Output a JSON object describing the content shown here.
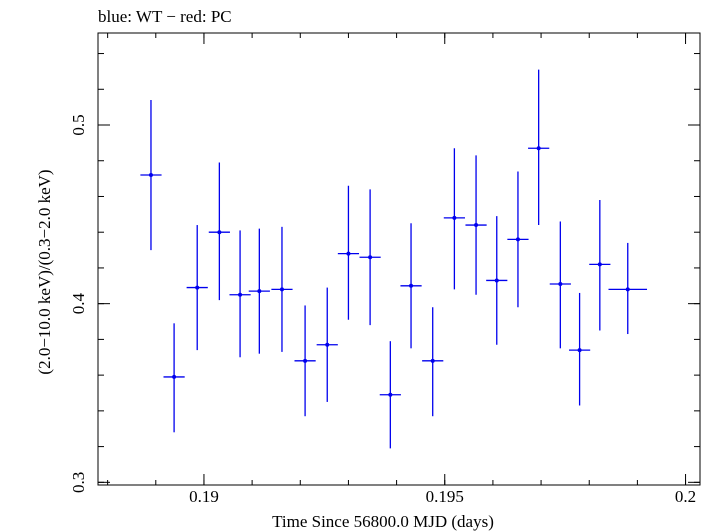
{
  "chart_data": {
    "type": "scatter",
    "title": "blue: WT − red: PC",
    "xlabel": "Time Since 56800.0 MJD (days)",
    "ylabel": "(2.0−10.0 keV)/(0.3−2.0 keV)",
    "xlim": [
      0.1878,
      0.2003
    ],
    "ylim": [
      0.2985,
      0.5515
    ],
    "log_y": false,
    "grid": false,
    "x_ticks": [
      {
        "value": 0.19,
        "label": "0.19"
      },
      {
        "value": 0.195,
        "label": "0.195"
      },
      {
        "value": 0.2,
        "label": "0.2"
      }
    ],
    "y_ticks": [
      {
        "value": 0.3,
        "label": "0.3"
      },
      {
        "value": 0.4,
        "label": "0.4"
      },
      {
        "value": 0.5,
        "label": "0.5"
      }
    ],
    "series": [
      {
        "name": "WT",
        "color": "#0000ee",
        "points": [
          {
            "x": 0.1889,
            "xerr": 0.00022,
            "y": 0.472,
            "ylo": 0.43,
            "yhi": 0.514
          },
          {
            "x": 0.18938,
            "xerr": 0.00022,
            "y": 0.359,
            "ylo": 0.328,
            "yhi": 0.389
          },
          {
            "x": 0.18986,
            "xerr": 0.00022,
            "y": 0.409,
            "ylo": 0.374,
            "yhi": 0.444
          },
          {
            "x": 0.19032,
            "xerr": 0.00022,
            "y": 0.44,
            "ylo": 0.402,
            "yhi": 0.479
          },
          {
            "x": 0.19075,
            "xerr": 0.00022,
            "y": 0.405,
            "ylo": 0.37,
            "yhi": 0.441
          },
          {
            "x": 0.19115,
            "xerr": 0.00022,
            "y": 0.407,
            "ylo": 0.372,
            "yhi": 0.442
          },
          {
            "x": 0.19162,
            "xerr": 0.00022,
            "y": 0.408,
            "ylo": 0.373,
            "yhi": 0.443
          },
          {
            "x": 0.1921,
            "xerr": 0.00022,
            "y": 0.368,
            "ylo": 0.337,
            "yhi": 0.399
          },
          {
            "x": 0.19256,
            "xerr": 0.00022,
            "y": 0.377,
            "ylo": 0.345,
            "yhi": 0.409
          },
          {
            "x": 0.193,
            "xerr": 0.00022,
            "y": 0.428,
            "ylo": 0.391,
            "yhi": 0.466
          },
          {
            "x": 0.19345,
            "xerr": 0.00022,
            "y": 0.426,
            "ylo": 0.388,
            "yhi": 0.464
          },
          {
            "x": 0.19387,
            "xerr": 0.00022,
            "y": 0.349,
            "ylo": 0.319,
            "yhi": 0.379
          },
          {
            "x": 0.1943,
            "xerr": 0.00022,
            "y": 0.41,
            "ylo": 0.375,
            "yhi": 0.445
          },
          {
            "x": 0.19475,
            "xerr": 0.00022,
            "y": 0.368,
            "ylo": 0.337,
            "yhi": 0.398
          },
          {
            "x": 0.1952,
            "xerr": 0.00022,
            "y": 0.448,
            "ylo": 0.408,
            "yhi": 0.487
          },
          {
            "x": 0.19565,
            "xerr": 0.00022,
            "y": 0.444,
            "ylo": 0.405,
            "yhi": 0.483
          },
          {
            "x": 0.19608,
            "xerr": 0.00022,
            "y": 0.413,
            "ylo": 0.377,
            "yhi": 0.449
          },
          {
            "x": 0.19652,
            "xerr": 0.00022,
            "y": 0.436,
            "ylo": 0.398,
            "yhi": 0.474
          },
          {
            "x": 0.19695,
            "xerr": 0.00022,
            "y": 0.487,
            "ylo": 0.444,
            "yhi": 0.531
          },
          {
            "x": 0.1974,
            "xerr": 0.00022,
            "y": 0.411,
            "ylo": 0.375,
            "yhi": 0.446
          },
          {
            "x": 0.1978,
            "xerr": 0.00022,
            "y": 0.374,
            "ylo": 0.343,
            "yhi": 0.406
          },
          {
            "x": 0.19822,
            "xerr": 0.00022,
            "y": 0.422,
            "ylo": 0.385,
            "yhi": 0.458
          },
          {
            "x": 0.1988,
            "xerr": 0.0004,
            "y": 0.408,
            "ylo": 0.383,
            "yhi": 0.434
          }
        ]
      }
    ]
  }
}
